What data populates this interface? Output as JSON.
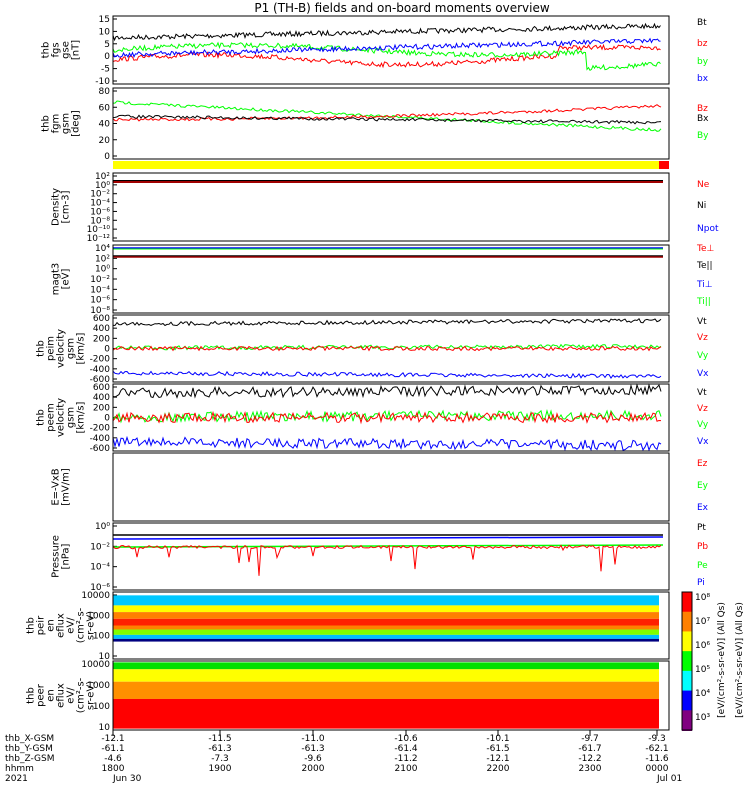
{
  "title": "P1 (TH-B) fields and on-board moments overview",
  "colors": {
    "black": "#000000",
    "red": "#ff0000",
    "green": "#00ff00",
    "blue": "#0000ff",
    "yellow": "#ffff00"
  },
  "panels": [
    {
      "id": "fgs",
      "ylabel": [
        "thb",
        "fgs",
        "gse",
        "[nT]"
      ],
      "ticks": [
        "15",
        "10",
        "5",
        "0",
        "-5",
        "-10"
      ],
      "legend": [
        {
          "text": "Bt",
          "color": "#000000"
        },
        {
          "text": "bz",
          "color": "#ff0000"
        },
        {
          "text": "by",
          "color": "#00ff00"
        },
        {
          "text": "bx",
          "color": "#0000ff"
        }
      ]
    },
    {
      "id": "fgm_angles",
      "ylabel": [
        "thb",
        "fgm",
        "gsm",
        "[deg]"
      ],
      "ticks": [
        "80",
        "60",
        "40",
        "20",
        "0"
      ],
      "legend": [
        {
          "text": "Bz",
          "color": "#ff0000"
        },
        {
          "text": "Bx",
          "color": "#000000"
        },
        {
          "text": "By",
          "color": "#00ff00"
        }
      ]
    },
    {
      "id": "density",
      "ylabel": [
        "Density",
        "[cm-3]"
      ],
      "ticks": [
        "10²",
        "10⁰",
        "10⁻²",
        "10⁻⁴",
        "10⁻⁶",
        "10⁻⁸",
        "10⁻¹⁰",
        "10⁻¹²"
      ],
      "legend": [
        {
          "text": "Ne",
          "color": "#ff0000"
        },
        {
          "text": "Ni",
          "color": "#000000"
        },
        {
          "text": "Npot",
          "color": "#0000ff"
        }
      ]
    },
    {
      "id": "temp",
      "ylabel": [
        "magt3",
        "[eV]"
      ],
      "ticks": [
        "10⁴",
        "10²",
        "10⁰",
        "10⁻²",
        "10⁻⁴",
        "10⁻⁶",
        "10⁻⁸"
      ],
      "legend": [
        {
          "text": "Te⊥",
          "color": "#ff0000"
        },
        {
          "text": "Te||",
          "color": "#000000"
        },
        {
          "text": "Ti⊥",
          "color": "#0000ff"
        },
        {
          "text": "Ti||",
          "color": "#00ff00"
        }
      ]
    },
    {
      "id": "peim",
      "ylabel": [
        "thb",
        "peim",
        "velocity",
        "gsm",
        "[km/s]"
      ],
      "ticks": [
        "600",
        "400",
        "200",
        "0",
        "-200",
        "-400",
        "-600"
      ],
      "legend": [
        {
          "text": "Vt",
          "color": "#000000"
        },
        {
          "text": "Vz",
          "color": "#ff0000"
        },
        {
          "text": "Vy",
          "color": "#00ff00"
        },
        {
          "text": "Vx",
          "color": "#0000ff"
        }
      ]
    },
    {
      "id": "peem",
      "ylabel": [
        "thb",
        "peem",
        "velocity",
        "gsm",
        "[km/s]"
      ],
      "ticks": [
        "600",
        "400",
        "200",
        "0",
        "-200",
        "-400",
        "-600"
      ],
      "legend": [
        {
          "text": "Vt",
          "color": "#000000"
        },
        {
          "text": "Vz",
          "color": "#ff0000"
        },
        {
          "text": "Vy",
          "color": "#00ff00"
        },
        {
          "text": "Vx",
          "color": "#0000ff"
        }
      ]
    },
    {
      "id": "efield",
      "ylabel": [
        "E=-VxB",
        "[mV/m]"
      ],
      "ticks": [],
      "legend": [
        {
          "text": "Ez",
          "color": "#ff0000"
        },
        {
          "text": "Ey",
          "color": "#00ff00"
        },
        {
          "text": "Ex",
          "color": "#0000ff"
        }
      ]
    },
    {
      "id": "pressure",
      "ylabel": [
        "Pressure",
        "[nPa]"
      ],
      "ticks": [
        "10⁰",
        "10⁻²",
        "10⁻⁴",
        "10⁻⁶"
      ],
      "legend": [
        {
          "text": "Pt",
          "color": "#000000"
        },
        {
          "text": "Pb",
          "color": "#ff0000"
        },
        {
          "text": "Pe",
          "color": "#00ff00"
        },
        {
          "text": "Pi",
          "color": "#0000ff"
        }
      ]
    },
    {
      "id": "peir",
      "ylabel": [
        "thb",
        "peir",
        "en",
        "eflux",
        "eV/",
        "(cm²-s-",
        "sr-eV)"
      ],
      "ticks": [
        "10000",
        "1000",
        "100",
        "10"
      ],
      "legend": []
    },
    {
      "id": "peer",
      "ylabel": [
        "thb",
        "peer",
        "en",
        "eflux",
        "eV/",
        "(cm²-s-",
        "sr-eV)"
      ],
      "ticks": [
        "10000",
        "1000",
        "100",
        "10"
      ],
      "legend": []
    }
  ],
  "colorbar": {
    "ticks": [
      "10⁸",
      "10⁷",
      "10⁶",
      "10⁵",
      "10⁴",
      "10³"
    ],
    "label": "[eV/(cm²-s-sr-eV)] (All Qs)",
    "label2": "[eV/(cm²-s-sr-eV)] (All Qs)"
  },
  "ephemeris": {
    "rows": [
      {
        "name": "thb_X-GSM",
        "values": [
          "-12.1",
          "-11.5",
          "-11.0",
          "-10.6",
          "-10.1",
          "-9.7",
          "-9.3"
        ]
      },
      {
        "name": "thb_Y-GSM",
        "values": [
          "-61.1",
          "-61.3",
          "-61.3",
          "-61.4",
          "-61.5",
          "-61.7",
          "-62.1"
        ]
      },
      {
        "name": "thb_Z-GSM",
        "values": [
          "-4.6",
          "-7.3",
          "-9.6",
          "-11.2",
          "-12.1",
          "-12.2",
          "-11.6"
        ]
      },
      {
        "name": "hhmm",
        "values": [
          "1800",
          "1900",
          "2000",
          "2100",
          "2200",
          "2300",
          "0000"
        ]
      },
      {
        "name": "2021",
        "values": [
          "Jun 30",
          "",
          "",
          "",
          "",
          "",
          "Jul 01"
        ]
      }
    ]
  },
  "chart_data": {
    "type": "line",
    "title": "P1 (TH-B) fields and on-board moments overview",
    "x": [
      "1800",
      "1900",
      "2000",
      "2100",
      "2200",
      "2300",
      "0000"
    ],
    "xlabel": "hhmm",
    "date_labels": [
      "2021 Jun 30",
      "Jul 01"
    ],
    "panels": [
      {
        "name": "fgs",
        "ylim": [
          -13,
          15
        ],
        "series": [
          {
            "name": "Bt",
            "values": [
              5,
              5,
              6,
              6,
              7,
              9,
              11
            ]
          },
          {
            "name": "bz",
            "values": [
              3,
              -3,
              -2,
              -2,
              -3,
              -4,
              4
            ]
          },
          {
            "name": "by",
            "values": [
              0,
              2,
              2,
              3,
              2,
              -1,
              -6
            ]
          },
          {
            "name": "bx",
            "values": [
              -2,
              0,
              4,
              5,
              5,
              6,
              5
            ]
          }
        ]
      },
      {
        "name": "fgm_angles",
        "ylim": [
          -10,
          80
        ],
        "series": [
          {
            "name": "By",
            "values": [
              62,
              58,
              50,
              42,
              38,
              33,
              24
            ]
          },
          {
            "name": "Bx",
            "values": [
              44,
              38,
              40,
              42,
              40,
              38,
              36
            ]
          },
          {
            "name": "Bz",
            "values": [
              37,
              36,
              38,
              40,
              44,
              50,
              57
            ]
          }
        ]
      },
      {
        "name": "peim",
        "ylim": [
          -600,
          600
        ],
        "series": [
          {
            "name": "Vt",
            "values": [
              450,
              450,
              470,
              500,
              500,
              500,
              520
            ]
          },
          {
            "name": "Vz",
            "values": [
              0,
              0,
              0,
              0,
              0,
              0,
              0
            ]
          },
          {
            "name": "Vy",
            "values": [
              0,
              0,
              0,
              0,
              30,
              30,
              50
            ]
          },
          {
            "name": "Vx",
            "values": [
              -450,
              -450,
              -470,
              -500,
              -500,
              -500,
              -510
            ]
          }
        ]
      },
      {
        "name": "peem",
        "ylim": [
          -600,
          600
        ],
        "series": [
          {
            "name": "Vt",
            "values": [
              450,
              450,
              470,
              500,
              500,
              500,
              520
            ]
          },
          {
            "name": "Vz",
            "values": [
              0,
              0,
              0,
              0,
              0,
              0,
              0
            ]
          },
          {
            "name": "Vy",
            "values": [
              0,
              0,
              0,
              0,
              30,
              30,
              50
            ]
          },
          {
            "name": "Vx",
            "values": [
              -450,
              -450,
              -470,
              -500,
              -500,
              -500,
              -510
            ]
          }
        ]
      }
    ]
  }
}
